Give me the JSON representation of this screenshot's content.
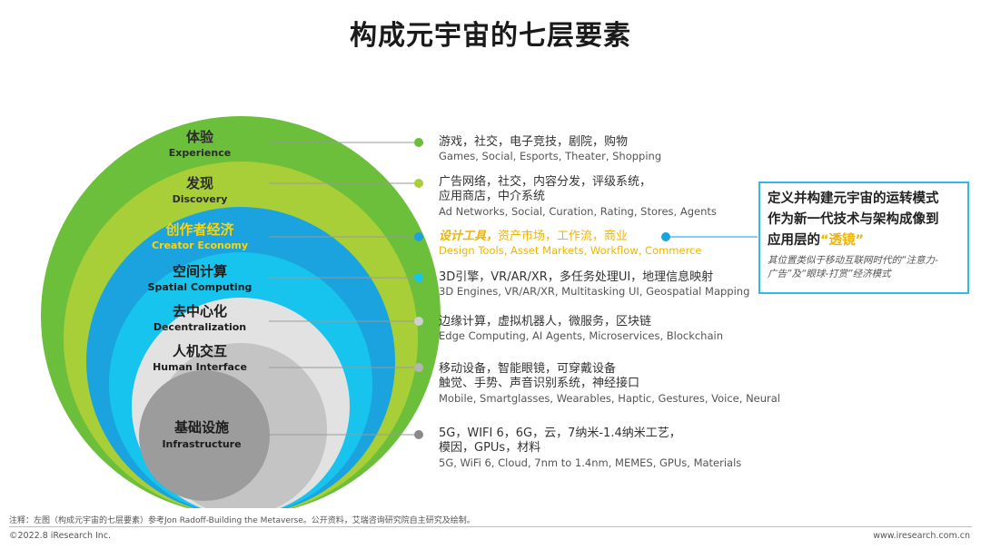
{
  "title": "构成元宇宙的七层要素",
  "layers": [
    {
      "zh": "体验",
      "en": "Experience",
      "color": "#6cbf3a",
      "label_color": "#2c2c2c",
      "desc_zh": [
        "游戏，社交，电子竞技，剧院，购物"
      ],
      "desc_en": "Games, Social, Esports, Theater, Shopping"
    },
    {
      "zh": "发现",
      "en": "Discovery",
      "color": "#a9cf38",
      "label_color": "#2c2c2c",
      "desc_zh": [
        "广告网络，社交，内容分发，评级系统，",
        "应用商店，中介系统"
      ],
      "desc_en": "Ad Networks, Social, Curation, Rating, Stores, Agents"
    },
    {
      "zh": "创作者经济",
      "en": "Creator Economy",
      "color": "#1aa3de",
      "label_color": "#ffd400",
      "desc_zh_emph": "设计工具，",
      "desc_zh_rest": "资产市场，工作流，商业",
      "desc_en": "Design Tools, Asset Markets, Workflow, Commerce"
    },
    {
      "zh": "空间计算",
      "en": "Spatial Computing",
      "color": "#17c4ee",
      "label_color": "#1c1c1c",
      "desc_zh": [
        "3D引擎，VR/AR/XR，多任务处理UI，地理信息映射"
      ],
      "desc_en": "3D Engines, VR/AR/XR, Multitasking UI, Geospatial Mapping"
    },
    {
      "zh": "去中心化",
      "en": "Decentralization",
      "color": "#e2e2e2",
      "label_color": "#1c1c1c",
      "desc_zh": [
        "边缘计算，虚拟机器人，微服务，区块链"
      ],
      "desc_en": "Edge Computing, AI Agents, Microservices, Blockchain"
    },
    {
      "zh": "人机交互",
      "en": "Human Interface",
      "color": "#c4c4c4",
      "label_color": "#1c1c1c",
      "desc_zh": [
        "移动设备，智能眼镜，可穿戴设备",
        "触觉、手势、声音识别系统，神经接口"
      ],
      "desc_en": "Mobile, Smartglasses, Wearables, Haptic, Gestures, Voice, Neural"
    },
    {
      "zh": "基础设施",
      "en": "Infrastructure",
      "color": "#9c9c9c",
      "label_color": "#1c1c1c",
      "desc_zh": [
        "5G，WIFI 6，6G，云，7纳米-1.4纳米工艺，",
        "模因，GPUs，材料"
      ],
      "desc_en": "5G, WiFi 6, Cloud, 7nm to 1.4nm, MEMES, GPUs, Materials"
    }
  ],
  "callout": {
    "line1": "定义并构建元宇宙的运转模式",
    "line2": "作为新一代技术与架构成像到",
    "line3_prefix": "应用层的",
    "line3_highlight": "“透镜”",
    "note_line1": "其位置类似于移动互联网时代的“注意力-",
    "note_line2": "广告”及“眼球-打赏”经济模式",
    "border_color": "#33b9e6"
  },
  "footer": {
    "note": "注释：左图（构成元宇宙的七层要素）参考Jon Radoff-Building the Metaverse。公开资料，艾瑞咨询研究院自主研究及绘制。",
    "copyright": "©2022.8 iResearch Inc.",
    "website": "www.iresearch.com.cn"
  },
  "dot_colors": [
    "#6cbf3a",
    "#a9cf38",
    "#1aa3de",
    "#17c4ee",
    "#d0d0d0",
    "#b4b4b4",
    "#8a8a8a"
  ]
}
